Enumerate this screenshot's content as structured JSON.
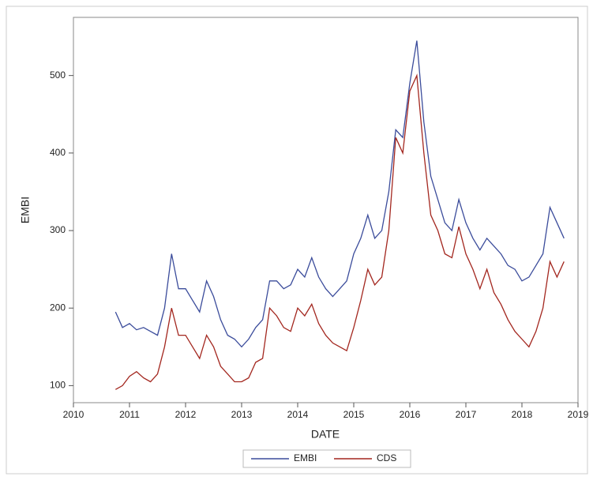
{
  "chart_data": {
    "type": "line",
    "x_label": "DATE",
    "y_label": "EMBI",
    "x": [
      2010.75,
      2010.875,
      2011.0,
      2011.125,
      2011.25,
      2011.375,
      2011.5,
      2011.625,
      2011.75,
      2011.875,
      2012.0,
      2012.125,
      2012.25,
      2012.375,
      2012.5,
      2012.625,
      2012.75,
      2012.875,
      2013.0,
      2013.125,
      2013.25,
      2013.375,
      2013.5,
      2013.625,
      2013.75,
      2013.875,
      2014.0,
      2014.125,
      2014.25,
      2014.375,
      2014.5,
      2014.625,
      2014.75,
      2014.875,
      2015.0,
      2015.125,
      2015.25,
      2015.375,
      2015.5,
      2015.625,
      2015.75,
      2015.875,
      2016.0,
      2016.125,
      2016.25,
      2016.375,
      2016.5,
      2016.625,
      2016.75,
      2016.875,
      2017.0,
      2017.125,
      2017.25,
      2017.375,
      2017.5,
      2017.625,
      2017.75,
      2017.875,
      2018.0,
      2018.125,
      2018.25,
      2018.375,
      2018.5,
      2018.625,
      2018.75
    ],
    "series": [
      {
        "name": "EMBI",
        "color": "#3b4c9b",
        "values": [
          195,
          175,
          180,
          172,
          175,
          170,
          165,
          200,
          270,
          225,
          225,
          210,
          195,
          235,
          215,
          185,
          165,
          160,
          150,
          160,
          175,
          185,
          235,
          235,
          225,
          230,
          250,
          240,
          265,
          240,
          225,
          215,
          225,
          235,
          270,
          290,
          320,
          290,
          300,
          350,
          430,
          420,
          490,
          545,
          440,
          370,
          340,
          310,
          300,
          340,
          310,
          290,
          275,
          290,
          280,
          270,
          255,
          250,
          235,
          240,
          255,
          270,
          330,
          310,
          290
        ]
      },
      {
        "name": "CDS",
        "color": "#a3271f",
        "values": [
          95,
          100,
          112,
          118,
          110,
          105,
          115,
          150,
          200,
          165,
          165,
          150,
          135,
          165,
          150,
          125,
          115,
          105,
          105,
          110,
          130,
          135,
          200,
          190,
          175,
          170,
          200,
          190,
          205,
          180,
          165,
          155,
          150,
          145,
          175,
          210,
          250,
          230,
          240,
          300,
          420,
          400,
          480,
          500,
          400,
          320,
          300,
          270,
          265,
          305,
          270,
          250,
          225,
          250,
          220,
          205,
          185,
          170,
          160,
          150,
          170,
          200,
          260,
          240,
          260
        ]
      }
    ],
    "xlim": [
      2010,
      2019
    ],
    "xticks": [
      2010,
      2011,
      2012,
      2013,
      2014,
      2015,
      2016,
      2017,
      2018,
      2019
    ],
    "ylim": [
      78,
      575
    ],
    "yticks": [
      100,
      200,
      300,
      400,
      500
    ]
  }
}
